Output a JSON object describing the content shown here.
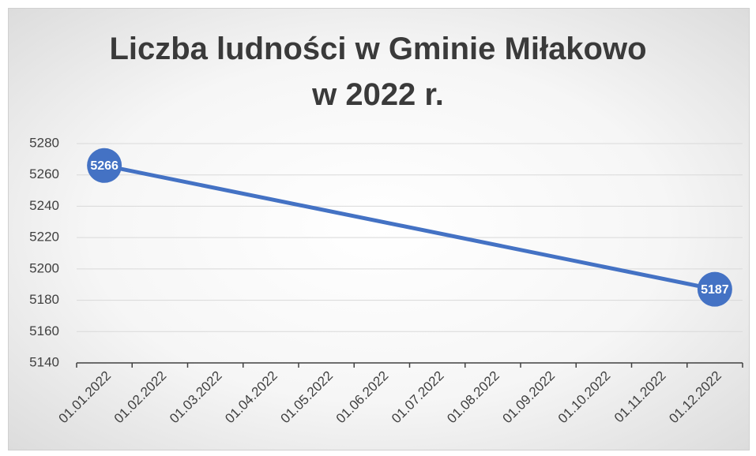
{
  "chart_data": {
    "type": "line",
    "title": "Liczba ludności w Gminie Miłakowo\nw 2022 r.",
    "x": [
      "01.01.2022",
      "01.12.2022"
    ],
    "values": [
      5266,
      5187
    ],
    "color": "#4472c4",
    "xticks": [
      "01.01.2022",
      "01.02.2022",
      "01.03.2022",
      "01.04.2022",
      "01.05.2022",
      "01.06.2022",
      "01.07.2022",
      "01.08.2022",
      "01.09.2022",
      "01.10.2022",
      "01.11.2022",
      "01.12.2022"
    ],
    "ylim": [
      5140,
      5280
    ],
    "yticks": [
      5140,
      5160,
      5180,
      5200,
      5220,
      5240,
      5260,
      5280
    ],
    "grid": true
  }
}
